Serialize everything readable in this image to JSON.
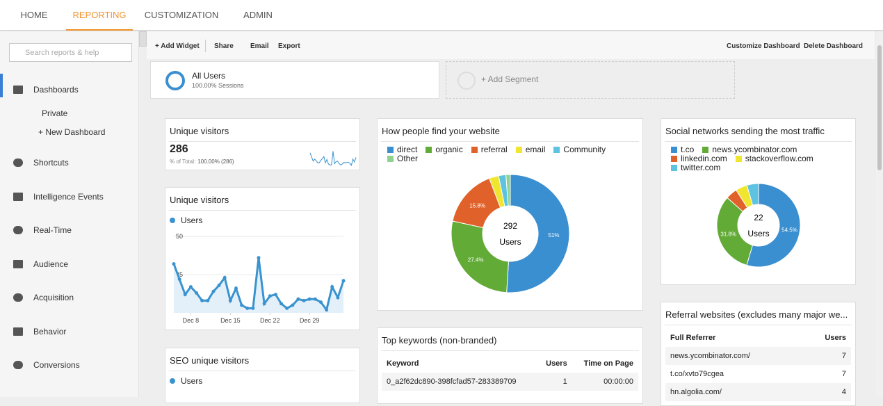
{
  "nav": {
    "tabs": [
      "HOME",
      "REPORTING",
      "CUSTOMIZATION",
      "ADMIN"
    ],
    "active": 1
  },
  "sidebar": {
    "search_placeholder": "Search reports & help",
    "items": [
      "Dashboards",
      "Shortcuts",
      "Intelligence Events",
      "Real-Time",
      "Audience",
      "Acquisition",
      "Behavior",
      "Conversions"
    ],
    "sub_items": [
      "Private",
      "+ New Dashboard"
    ]
  },
  "toolbar": {
    "left": [
      "+ Add Widget",
      "Share",
      "Email",
      "Export"
    ],
    "right": [
      "Customize Dashboard",
      "Delete Dashboard"
    ]
  },
  "segments": {
    "label": "All Users",
    "sub": "100.00% Sessions",
    "add": "+ Add Segment"
  },
  "widgets": {
    "metric": {
      "title": "Unique visitors",
      "value": "286",
      "sub_label": "% of Total:",
      "sub_value": "100.00% (286)"
    },
    "timeline": {
      "title": "Unique visitors",
      "legend": "Users",
      "color": "#3a93cf",
      "ylim": [
        0,
        50
      ],
      "yticks": [
        25,
        50
      ],
      "xticks": [
        {
          "value": 3,
          "label": "Dec 8"
        },
        {
          "value": 10,
          "label": "Dec 15"
        },
        {
          "value": 17,
          "label": "Dec 22"
        },
        {
          "value": 24,
          "label": "Dec 29"
        }
      ],
      "values": [
        32,
        22,
        12,
        17,
        13,
        8,
        8,
        14,
        18,
        23,
        8,
        16,
        5,
        3,
        3,
        36,
        6,
        11,
        12,
        6,
        3,
        5,
        9,
        8,
        9,
        9,
        7,
        2,
        17,
        10,
        21
      ]
    },
    "seo": {
      "title": "SEO unique visitors",
      "legend": "Users"
    },
    "traffic": {
      "title": "How people find your website",
      "center_value": "292",
      "center_label": "Users",
      "labels": [
        "direct",
        "organic",
        "referral",
        "email",
        "Community",
        "Other"
      ],
      "colors": [
        "#3a8fd0",
        "#62ab37",
        "#e0622a",
        "#f0e630",
        "#5ec3e0",
        "#8fd28f"
      ],
      "values": [
        51,
        27.4,
        15.8,
        2.6,
        2,
        1.2
      ],
      "value_labels": [
        "51%",
        "27.4%",
        "15.8%",
        null,
        null,
        null
      ]
    },
    "social": {
      "title": "Social networks sending the most traffic",
      "center_value": "22",
      "center_label": "Users",
      "labels": [
        "t.co",
        "news.ycombinator.com",
        "linkedin.com",
        "stackoverflow.com",
        "twitter.com"
      ],
      "colors": [
        "#3a8fd0",
        "#62ab37",
        "#e0622a",
        "#f0e630",
        "#5ec3e0"
      ],
      "values": [
        54.5,
        31.8,
        4.5,
        4.5,
        4.5
      ],
      "value_labels": [
        "54.5%",
        "31.8%",
        null,
        null,
        null
      ]
    },
    "keywords": {
      "title": "Top keywords (non-branded)",
      "header": [
        "Keyword",
        "Users",
        "Time on Page"
      ],
      "rows": [
        [
          "0_a2f62dc890-398fcfad57-283389709",
          "1",
          "00:00:00"
        ]
      ]
    },
    "referral": {
      "title": "Referral websites (excludes many major we...",
      "header": [
        "Full Referrer",
        "Users"
      ],
      "rows": [
        [
          "news.ycombinator.com/",
          "7"
        ],
        [
          "t.co/xvto79cgea",
          "7"
        ],
        [
          "hn.algolia.com/",
          "4"
        ]
      ]
    }
  }
}
